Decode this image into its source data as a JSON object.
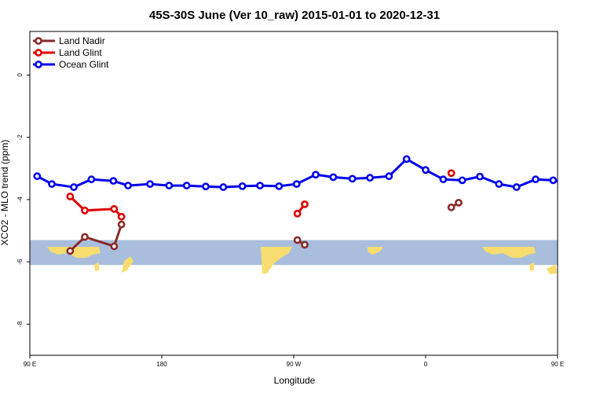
{
  "chart_data": {
    "type": "line",
    "title": "45S-30S June (Ver 10_raw)   2015-01-01 to 2020-12-31",
    "xlabel": "Longitude",
    "ylabel": "XCO2 - MLO trend (ppm)",
    "xlim": [
      90,
      450
    ],
    "ylim": [
      -9.0,
      1.4
    ],
    "x_ticks": [
      {
        "value": 90,
        "label": "90 E"
      },
      {
        "value": 180,
        "label": "180"
      },
      {
        "value": 270,
        "label": "90 W"
      },
      {
        "value": 360,
        "label": "0"
      },
      {
        "value": 450,
        "label": "90 E"
      },
      {
        "value": 540,
        "label": "180"
      }
    ],
    "y_ticks": [
      {
        "value": 0,
        "label": "0"
      },
      {
        "value": -2,
        "label": "-2"
      },
      {
        "value": -4,
        "label": "-4"
      },
      {
        "value": -6,
        "label": "-6"
      },
      {
        "value": -8,
        "label": "-8"
      }
    ],
    "legend_position": "top-left",
    "series": [
      {
        "name": "Land Nadir",
        "color": "#8b2a2a",
        "segments": [
          [
            {
              "x": 117.5,
              "y": -5.65
            },
            {
              "x": 127.5,
              "y": -5.2
            },
            {
              "x": 147.5,
              "y": -5.5
            },
            {
              "x": 152.5,
              "y": -4.8
            }
          ],
          [
            {
              "x": 272.5,
              "y": -5.3
            },
            {
              "x": 277.5,
              "y": -5.45
            }
          ],
          [
            {
              "x": 377.5,
              "y": -4.25
            },
            {
              "x": 382.5,
              "y": -4.1
            }
          ],
          [
            {
              "x": 477.5,
              "y": -5.65
            },
            {
              "x": 487.5,
              "y": -5.2
            },
            {
              "x": 507.5,
              "y": -5.5
            },
            {
              "x": 512.5,
              "y": -4.8
            }
          ]
        ]
      },
      {
        "name": "Land Glint",
        "color": "#e00000",
        "segments": [
          [
            {
              "x": 117.5,
              "y": -3.9
            },
            {
              "x": 127.5,
              "y": -4.35
            },
            {
              "x": 147.5,
              "y": -4.3
            },
            {
              "x": 152.5,
              "y": -4.55
            }
          ],
          [
            {
              "x": 272.5,
              "y": -4.45
            },
            {
              "x": 277.5,
              "y": -4.15
            }
          ],
          [
            {
              "x": 377.5,
              "y": -3.15
            }
          ],
          [
            {
              "x": 477.5,
              "y": -3.9
            },
            {
              "x": 487.5,
              "y": -4.35
            },
            {
              "x": 507.5,
              "y": -4.3
            },
            {
              "x": 512.5,
              "y": -4.55
            }
          ]
        ]
      },
      {
        "name": "Ocean Glint",
        "color": "#0000ee",
        "segments": [
          [
            {
              "x": 95,
              "y": -3.25
            },
            {
              "x": 105,
              "y": -3.5
            },
            {
              "x": 120,
              "y": -3.6
            },
            {
              "x": 132,
              "y": -3.35
            },
            {
              "x": 147,
              "y": -3.4
            },
            {
              "x": 157,
              "y": -3.55
            },
            {
              "x": 172,
              "y": -3.5
            },
            {
              "x": 185,
              "y": -3.55
            },
            {
              "x": 197,
              "y": -3.55
            },
            {
              "x": 210,
              "y": -3.58
            },
            {
              "x": 222,
              "y": -3.6
            },
            {
              "x": 235,
              "y": -3.57
            },
            {
              "x": 247,
              "y": -3.55
            },
            {
              "x": 260,
              "y": -3.57
            },
            {
              "x": 272,
              "y": -3.5
            },
            {
              "x": 285,
              "y": -3.2
            },
            {
              "x": 297,
              "y": -3.28
            },
            {
              "x": 310,
              "y": -3.33
            },
            {
              "x": 322,
              "y": -3.3
            },
            {
              "x": 335,
              "y": -3.25
            },
            {
              "x": 347,
              "y": -2.7
            },
            {
              "x": 360,
              "y": -3.05
            },
            {
              "x": 372,
              "y": -3.35
            },
            {
              "x": 385,
              "y": -3.38
            },
            {
              "x": 397,
              "y": -3.26
            },
            {
              "x": 410,
              "y": -3.5
            },
            {
              "x": 422,
              "y": -3.6
            },
            {
              "x": 435,
              "y": -3.35
            },
            {
              "x": 447,
              "y": -3.38
            },
            {
              "x": 460,
              "y": -3.55
            }
          ]
        ]
      }
    ],
    "map_band": {
      "y_range": [
        -6.1,
        -5.3
      ],
      "ocean_color": "#a8bedc",
      "land_color": "#f7dc6f"
    }
  }
}
